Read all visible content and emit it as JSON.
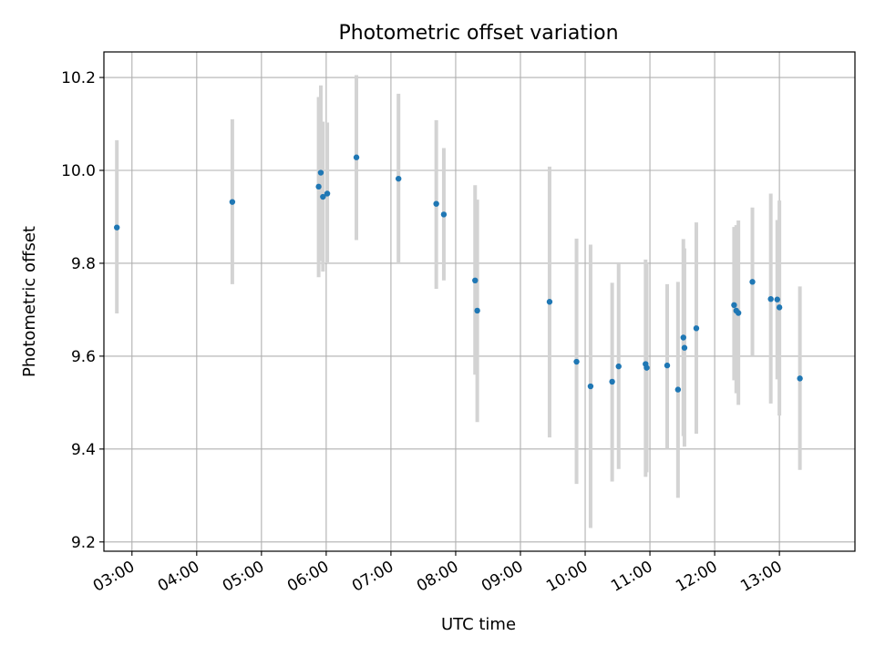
{
  "chart_data": {
    "type": "scatter",
    "title": "Photometric offset variation",
    "xlabel": "UTC time",
    "ylabel": "Photometric offset",
    "xlim": [
      "02:34",
      "14:10"
    ],
    "ylim": [
      9.18,
      10.255
    ],
    "xticks": [
      "03:00",
      "04:00",
      "05:00",
      "06:00",
      "07:00",
      "08:00",
      "09:00",
      "10:00",
      "11:00",
      "12:00",
      "13:00"
    ],
    "yticks": [
      "9.2",
      "9.4",
      "9.6",
      "9.8",
      "10.0",
      "10.2"
    ],
    "grid": true,
    "colors": {
      "point": "#1f77b4",
      "errorbar": "#d3d3d3",
      "grid": "#b0b0b0",
      "axes": "#000000"
    },
    "points": [
      {
        "x": "02:46",
        "y": 9.877,
        "yerr_low": 9.692,
        "yerr_high": 10.065
      },
      {
        "x": "04:33",
        "y": 9.932,
        "yerr_low": 9.755,
        "yerr_high": 10.11
      },
      {
        "x": "05:53",
        "y": 9.965,
        "yerr_low": 9.77,
        "yerr_high": 10.158
      },
      {
        "x": "05:55",
        "y": 9.995,
        "yerr_low": 9.805,
        "yerr_high": 10.183
      },
      {
        "x": "05:57",
        "y": 9.943,
        "yerr_low": 9.782,
        "yerr_high": 10.105
      },
      {
        "x": "06:01",
        "y": 9.95,
        "yerr_low": 9.8,
        "yerr_high": 10.103
      },
      {
        "x": "06:28",
        "y": 10.028,
        "yerr_low": 9.85,
        "yerr_high": 10.205
      },
      {
        "x": "07:07",
        "y": 9.982,
        "yerr_low": 9.8,
        "yerr_high": 10.165
      },
      {
        "x": "07:42",
        "y": 9.928,
        "yerr_low": 9.745,
        "yerr_high": 10.108
      },
      {
        "x": "07:49",
        "y": 9.905,
        "yerr_low": 9.763,
        "yerr_high": 10.048
      },
      {
        "x": "08:18",
        "y": 9.763,
        "yerr_low": 9.56,
        "yerr_high": 9.968
      },
      {
        "x": "08:20",
        "y": 9.698,
        "yerr_low": 9.458,
        "yerr_high": 9.937
      },
      {
        "x": "09:27",
        "y": 9.717,
        "yerr_low": 9.425,
        "yerr_high": 10.008
      },
      {
        "x": "09:52",
        "y": 9.588,
        "yerr_low": 9.325,
        "yerr_high": 9.853
      },
      {
        "x": "10:05",
        "y": 9.535,
        "yerr_low": 9.23,
        "yerr_high": 9.84
      },
      {
        "x": "10:25",
        "y": 9.545,
        "yerr_low": 9.33,
        "yerr_high": 9.758
      },
      {
        "x": "10:31",
        "y": 9.578,
        "yerr_low": 9.357,
        "yerr_high": 9.8
      },
      {
        "x": "10:56",
        "y": 9.583,
        "yerr_low": 9.34,
        "yerr_high": 9.808
      },
      {
        "x": "10:57",
        "y": 9.575,
        "yerr_low": 9.35,
        "yerr_high": 9.8
      },
      {
        "x": "11:16",
        "y": 9.58,
        "yerr_low": 9.4,
        "yerr_high": 9.755
      },
      {
        "x": "11:26",
        "y": 9.528,
        "yerr_low": 9.295,
        "yerr_high": 9.76
      },
      {
        "x": "11:31",
        "y": 9.64,
        "yerr_low": 9.428,
        "yerr_high": 9.852
      },
      {
        "x": "11:32",
        "y": 9.618,
        "yerr_low": 9.405,
        "yerr_high": 9.832
      },
      {
        "x": "11:43",
        "y": 9.66,
        "yerr_low": 9.433,
        "yerr_high": 9.888
      },
      {
        "x": "12:18",
        "y": 9.71,
        "yerr_low": 9.548,
        "yerr_high": 9.878
      },
      {
        "x": "12:20",
        "y": 9.698,
        "yerr_low": 9.52,
        "yerr_high": 9.882
      },
      {
        "x": "12:22",
        "y": 9.693,
        "yerr_low": 9.495,
        "yerr_high": 9.892
      },
      {
        "x": "12:35",
        "y": 9.76,
        "yerr_low": 9.6,
        "yerr_high": 9.92
      },
      {
        "x": "12:52",
        "y": 9.723,
        "yerr_low": 9.498,
        "yerr_high": 9.95
      },
      {
        "x": "12:58",
        "y": 9.722,
        "yerr_low": 9.55,
        "yerr_high": 9.893
      },
      {
        "x": "13:00",
        "y": 9.705,
        "yerr_low": 9.472,
        "yerr_high": 9.935
      },
      {
        "x": "13:19",
        "y": 9.552,
        "yerr_low": 9.355,
        "yerr_high": 9.75
      }
    ]
  }
}
